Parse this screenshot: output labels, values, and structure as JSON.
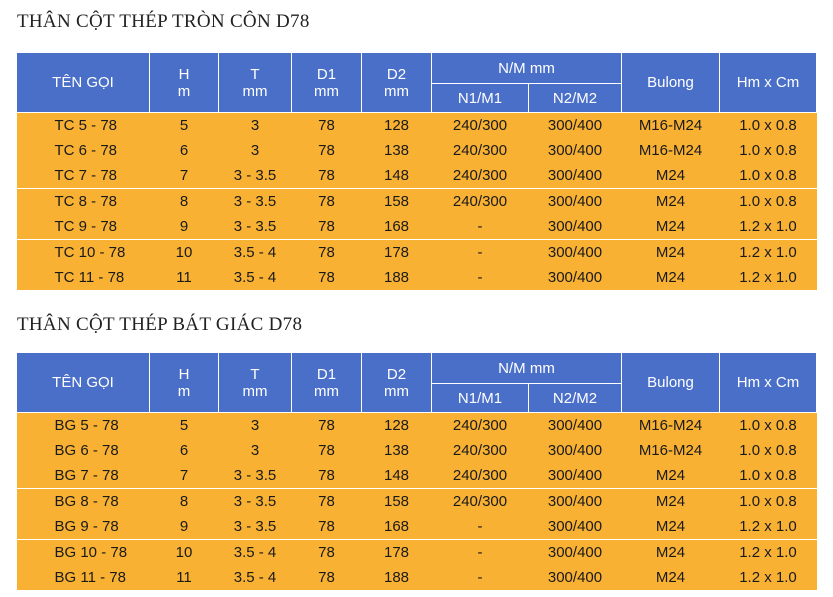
{
  "sections": [
    {
      "title": "THÂN CỘT THÉP TRÒN CÔN D78",
      "headers": {
        "name": "TÊN GỌI",
        "h": [
          "H",
          "m"
        ],
        "t": [
          "T",
          "mm"
        ],
        "d1": [
          "D1",
          "mm"
        ],
        "d2": [
          "D2",
          "mm"
        ],
        "nm": "N/M mm",
        "n1m1": "N1/M1",
        "n2m2": "N2/M2",
        "bulong": "Bulong",
        "hmcm": "Hm x Cm"
      },
      "rows": [
        {
          "name": "TC 5 - 78",
          "h": "5",
          "t": "3",
          "d1": "78",
          "d2": "128",
          "n1m1": "240/300",
          "n2m2": "300/400",
          "bulong": "M16-M24",
          "hmcm": "1.0 x 0.8"
        },
        {
          "name": "TC 6 - 78",
          "h": "6",
          "t": "3",
          "d1": "78",
          "d2": "138",
          "n1m1": "240/300",
          "n2m2": "300/400",
          "bulong": "M16-M24",
          "hmcm": "1.0 x 0.8"
        },
        {
          "name": "TC 7 - 78",
          "h": "7",
          "t": "3 - 3.5",
          "d1": "78",
          "d2": "148",
          "n1m1": "240/300",
          "n2m2": "300/400",
          "bulong": "M24",
          "hmcm": "1.0 x 0.8"
        },
        {
          "name": "TC 8 - 78",
          "h": "8",
          "t": "3 - 3.5",
          "d1": "78",
          "d2": "158",
          "n1m1": "240/300",
          "n2m2": "300/400",
          "bulong": "M24",
          "hmcm": "1.0 x 0.8"
        },
        {
          "name": "TC 9 - 78",
          "h": "9",
          "t": "3 - 3.5",
          "d1": "78",
          "d2": "168",
          "n1m1": "-",
          "n2m2": "300/400",
          "bulong": "M24",
          "hmcm": "1.2 x 1.0"
        },
        {
          "name": "TC 10 - 78",
          "h": "10",
          "t": "3.5 - 4",
          "d1": "78",
          "d2": "178",
          "n1m1": "-",
          "n2m2": "300/400",
          "bulong": "M24",
          "hmcm": "1.2 x 1.0"
        },
        {
          "name": "TC 11 - 78",
          "h": "11",
          "t": "3.5 - 4",
          "d1": "78",
          "d2": "188",
          "n1m1": "-",
          "n2m2": "300/400",
          "bulong": "M24",
          "hmcm": "1.2 x 1.0"
        }
      ]
    },
    {
      "title": "THÂN CỘT THÉP BÁT GIÁC D78",
      "headers": {
        "name": "TÊN GỌI",
        "h": [
          "H",
          "m"
        ],
        "t": [
          "T",
          "mm"
        ],
        "d1": [
          "D1",
          "mm"
        ],
        "d2": [
          "D2",
          "mm"
        ],
        "nm": "N/M mm",
        "n1m1": "N1/M1",
        "n2m2": "N2/M2",
        "bulong": "Bulong",
        "hmcm": "Hm x Cm"
      },
      "rows": [
        {
          "name": "BG 5 - 78",
          "h": "5",
          "t": "3",
          "d1": "78",
          "d2": "128",
          "n1m1": "240/300",
          "n2m2": "300/400",
          "bulong": "M16-M24",
          "hmcm": "1.0 x 0.8"
        },
        {
          "name": "BG 6 - 78",
          "h": "6",
          "t": "3",
          "d1": "78",
          "d2": "138",
          "n1m1": "240/300",
          "n2m2": "300/400",
          "bulong": "M16-M24",
          "hmcm": "1.0 x 0.8"
        },
        {
          "name": "BG 7 - 78",
          "h": "7",
          "t": "3 - 3.5",
          "d1": "78",
          "d2": "148",
          "n1m1": "240/300",
          "n2m2": "300/400",
          "bulong": "M24",
          "hmcm": "1.0 x 0.8"
        },
        {
          "name": "BG 8 - 78",
          "h": "8",
          "t": "3 - 3.5",
          "d1": "78",
          "d2": "158",
          "n1m1": "240/300",
          "n2m2": "300/400",
          "bulong": "M24",
          "hmcm": "1.0 x 0.8"
        },
        {
          "name": "BG 9 - 78",
          "h": "9",
          "t": "3 - 3.5",
          "d1": "78",
          "d2": "168",
          "n1m1": "-",
          "n2m2": "300/400",
          "bulong": "M24",
          "hmcm": "1.2 x 1.0"
        },
        {
          "name": "BG 10 - 78",
          "h": "10",
          "t": "3.5 - 4",
          "d1": "78",
          "d2": "178",
          "n1m1": "-",
          "n2m2": "300/400",
          "bulong": "M24",
          "hmcm": "1.2 x 1.0"
        },
        {
          "name": "BG 11 - 78",
          "h": "11",
          "t": "3.5 - 4",
          "d1": "78",
          "d2": "188",
          "n1m1": "-",
          "n2m2": "300/400",
          "bulong": "M24",
          "hmcm": "1.2 x 1.0"
        }
      ]
    }
  ],
  "colors": {
    "header_bg": "#4a6fc9",
    "row_bg": "#f8b133"
  }
}
